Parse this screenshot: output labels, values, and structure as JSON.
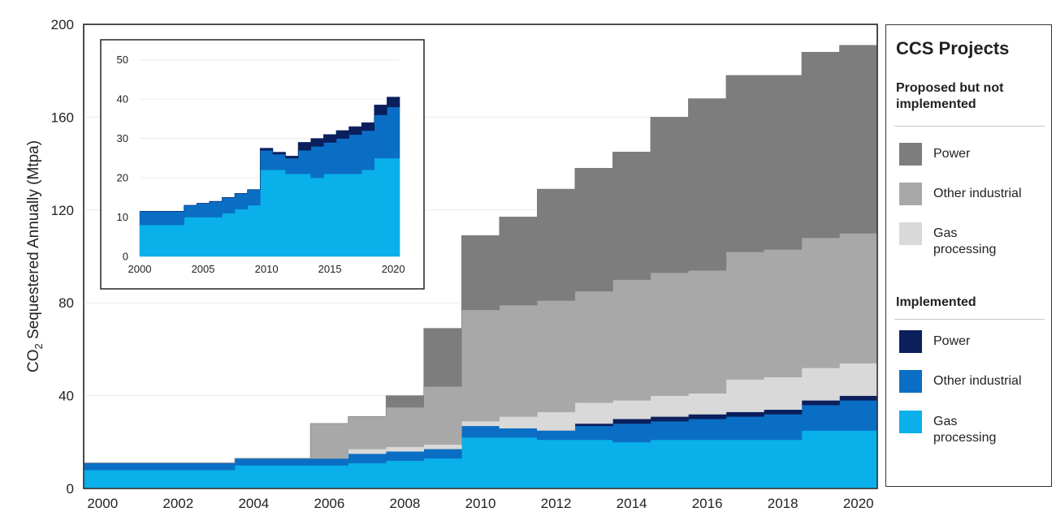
{
  "chart_data": [
    {
      "type": "area",
      "stacked": true,
      "step": true,
      "ylabel": "CO2 Sequestered Annually (Mtpa)",
      "ylabel_main": "CO",
      "ylabel_sub": "2",
      "ylabel_rest": " Sequestered Annually (Mtpa)",
      "xlim": [
        1999.5,
        2020.5
      ],
      "ylim": [
        0,
        200
      ],
      "xticks": [
        2000,
        2002,
        2004,
        2006,
        2008,
        2010,
        2012,
        2014,
        2016,
        2018,
        2020
      ],
      "yticks": [
        0,
        40,
        80,
        120,
        160,
        200
      ],
      "grid": true,
      "x": [
        2000,
        2001,
        2002,
        2003,
        2004,
        2005,
        2006,
        2007,
        2008,
        2009,
        2010,
        2011,
        2012,
        2013,
        2014,
        2015,
        2016,
        2017,
        2018,
        2019,
        2020
      ],
      "series": [
        {
          "name": "Gas processing",
          "status": "Implemented",
          "color": "#0ab0ea",
          "values": [
            8,
            8,
            8,
            8,
            10,
            10,
            10,
            11,
            12,
            13,
            22,
            22,
            21,
            21,
            20,
            21,
            21,
            21,
            21,
            25,
            25
          ]
        },
        {
          "name": "Other industrial",
          "status": "Implemented",
          "color": "#0a6fc4",
          "values": [
            3,
            3,
            3,
            3,
            3,
            3,
            3,
            4,
            4,
            4,
            5,
            4,
            4,
            6,
            8,
            8,
            9,
            10,
            11,
            11,
            13
          ]
        },
        {
          "name": "Power",
          "status": "Implemented",
          "color": "#0b1f5c",
          "values": [
            0,
            0,
            0,
            0,
            0,
            0,
            0,
            0,
            0,
            0,
            0,
            0,
            0,
            1,
            2,
            2,
            2,
            2,
            2,
            2,
            2
          ]
        },
        {
          "name": "Gas processing",
          "status": "Proposed but not implemented",
          "color": "#d9d9d9",
          "values": [
            0,
            0,
            0,
            0,
            0,
            0,
            0,
            2,
            2,
            2,
            2,
            5,
            8,
            9,
            8,
            9,
            9,
            14,
            14,
            14,
            14
          ]
        },
        {
          "name": "Other industrial",
          "status": "Proposed but not implemented",
          "color": "#a8a8a8",
          "values": [
            0,
            0,
            0,
            0,
            0,
            0,
            15,
            14,
            17,
            25,
            48,
            48,
            48,
            48,
            52,
            53,
            53,
            55,
            55,
            56,
            56
          ]
        },
        {
          "name": "Power",
          "status": "Proposed but not implemented",
          "color": "#7d7d7d",
          "values": [
            0,
            0,
            0,
            0,
            0,
            0,
            0,
            0,
            5,
            25,
            32,
            38,
            48,
            53,
            55,
            67,
            74,
            76,
            75,
            80,
            81
          ]
        }
      ]
    },
    {
      "type": "area",
      "stacked": true,
      "step": true,
      "inset": true,
      "xlim": [
        2000,
        2020.5
      ],
      "ylim": [
        0,
        52
      ],
      "xticks": [
        2000,
        2005,
        2010,
        2015,
        2020
      ],
      "yticks": [
        0,
        10,
        20,
        30,
        40,
        50
      ],
      "grid": true,
      "x": [
        2000,
        2001,
        2002,
        2003,
        2004,
        2005,
        2006,
        2007,
        2008,
        2009,
        2010,
        2011,
        2012,
        2013,
        2014,
        2015,
        2016,
        2017,
        2018,
        2019,
        2020
      ],
      "series": [
        {
          "name": "Gas processing",
          "color": "#0ab0ea",
          "values": [
            8,
            8,
            8,
            8,
            10,
            10,
            10,
            11,
            12,
            13,
            22,
            22,
            21,
            21,
            20,
            21,
            21,
            21,
            22,
            25,
            25
          ]
        },
        {
          "name": "Other industrial",
          "color": "#0a6fc4",
          "values": [
            3.5,
            3.5,
            3.5,
            3.5,
            3,
            3.5,
            4,
            4,
            4,
            4,
            5,
            4,
            4,
            6,
            8,
            8,
            9,
            10,
            10,
            11,
            13
          ]
        },
        {
          "name": "Power",
          "color": "#0b1f5c",
          "values": [
            0,
            0,
            0,
            0,
            0,
            0,
            0,
            0,
            0,
            0,
            0.5,
            0.5,
            0.5,
            2,
            2,
            2,
            2,
            2,
            2,
            2.5,
            2.5
          ]
        }
      ]
    }
  ],
  "legend": {
    "title": "CCS Projects",
    "group1_heading": "Proposed but not implemented",
    "group2_heading": "Implemented",
    "items": [
      {
        "label": "Power",
        "color": "#7d7d7d"
      },
      {
        "label": "Other industrial",
        "color": "#a8a8a8"
      },
      {
        "label": "Gas processing",
        "color": "#d9d9d9"
      },
      {
        "label": "Power",
        "color": "#0b1f5c"
      },
      {
        "label": "Other industrial",
        "color": "#0a6fc4"
      },
      {
        "label": "Gas processing",
        "color": "#0ab0ea"
      }
    ]
  }
}
